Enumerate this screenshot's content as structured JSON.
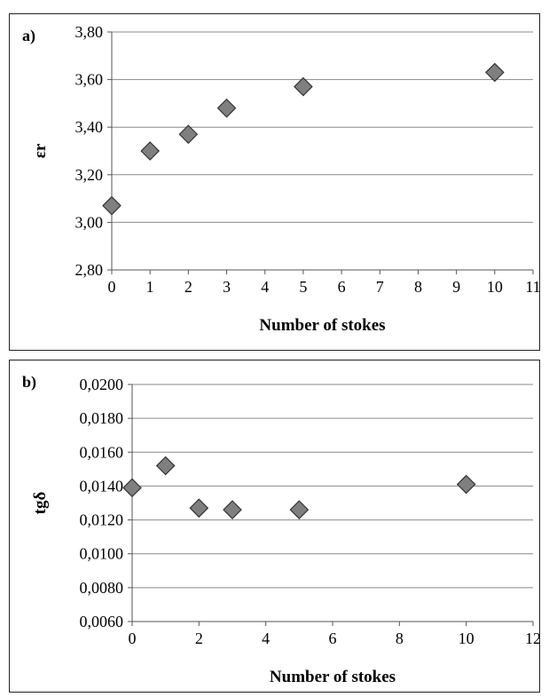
{
  "chart_data": [
    {
      "type": "scatter",
      "panel_label": "a)",
      "xlabel": "Number of stokes",
      "ylabel": "εr",
      "x_ticks": [
        "0",
        "1",
        "2",
        "3",
        "4",
        "5",
        "6",
        "7",
        "8",
        "9",
        "10",
        "11"
      ],
      "y_ticks": [
        "3,80",
        "3,60",
        "3,40",
        "3,20",
        "3,00",
        "2,80"
      ],
      "xlim": [
        0,
        11
      ],
      "ylim": [
        2.8,
        3.8
      ],
      "grid": "horizontal",
      "marker": "diamond",
      "marker_color": "#7f7f7f",
      "series": [
        {
          "x": [
            0,
            1,
            2,
            3,
            5,
            10
          ],
          "y": [
            3.07,
            3.3,
            3.37,
            3.48,
            3.57,
            3.63
          ]
        }
      ]
    },
    {
      "type": "scatter",
      "panel_label": "b)",
      "xlabel": "Number of stokes",
      "ylabel": "tgδ",
      "x_ticks": [
        "0",
        "2",
        "4",
        "6",
        "8",
        "10",
        "12"
      ],
      "y_ticks": [
        "0,0200",
        "0,0180",
        "0,0160",
        "0,0140",
        "0,0120",
        "0,0100",
        "0,0080",
        "0,0060"
      ],
      "xlim": [
        0,
        12
      ],
      "ylim": [
        0.006,
        0.02
      ],
      "grid": "horizontal",
      "marker": "diamond",
      "marker_color": "#7f7f7f",
      "series": [
        {
          "x": [
            0,
            1,
            2,
            3,
            5,
            10
          ],
          "y": [
            0.0139,
            0.0152,
            0.0127,
            0.0126,
            0.0126,
            0.0141
          ]
        }
      ]
    }
  ]
}
